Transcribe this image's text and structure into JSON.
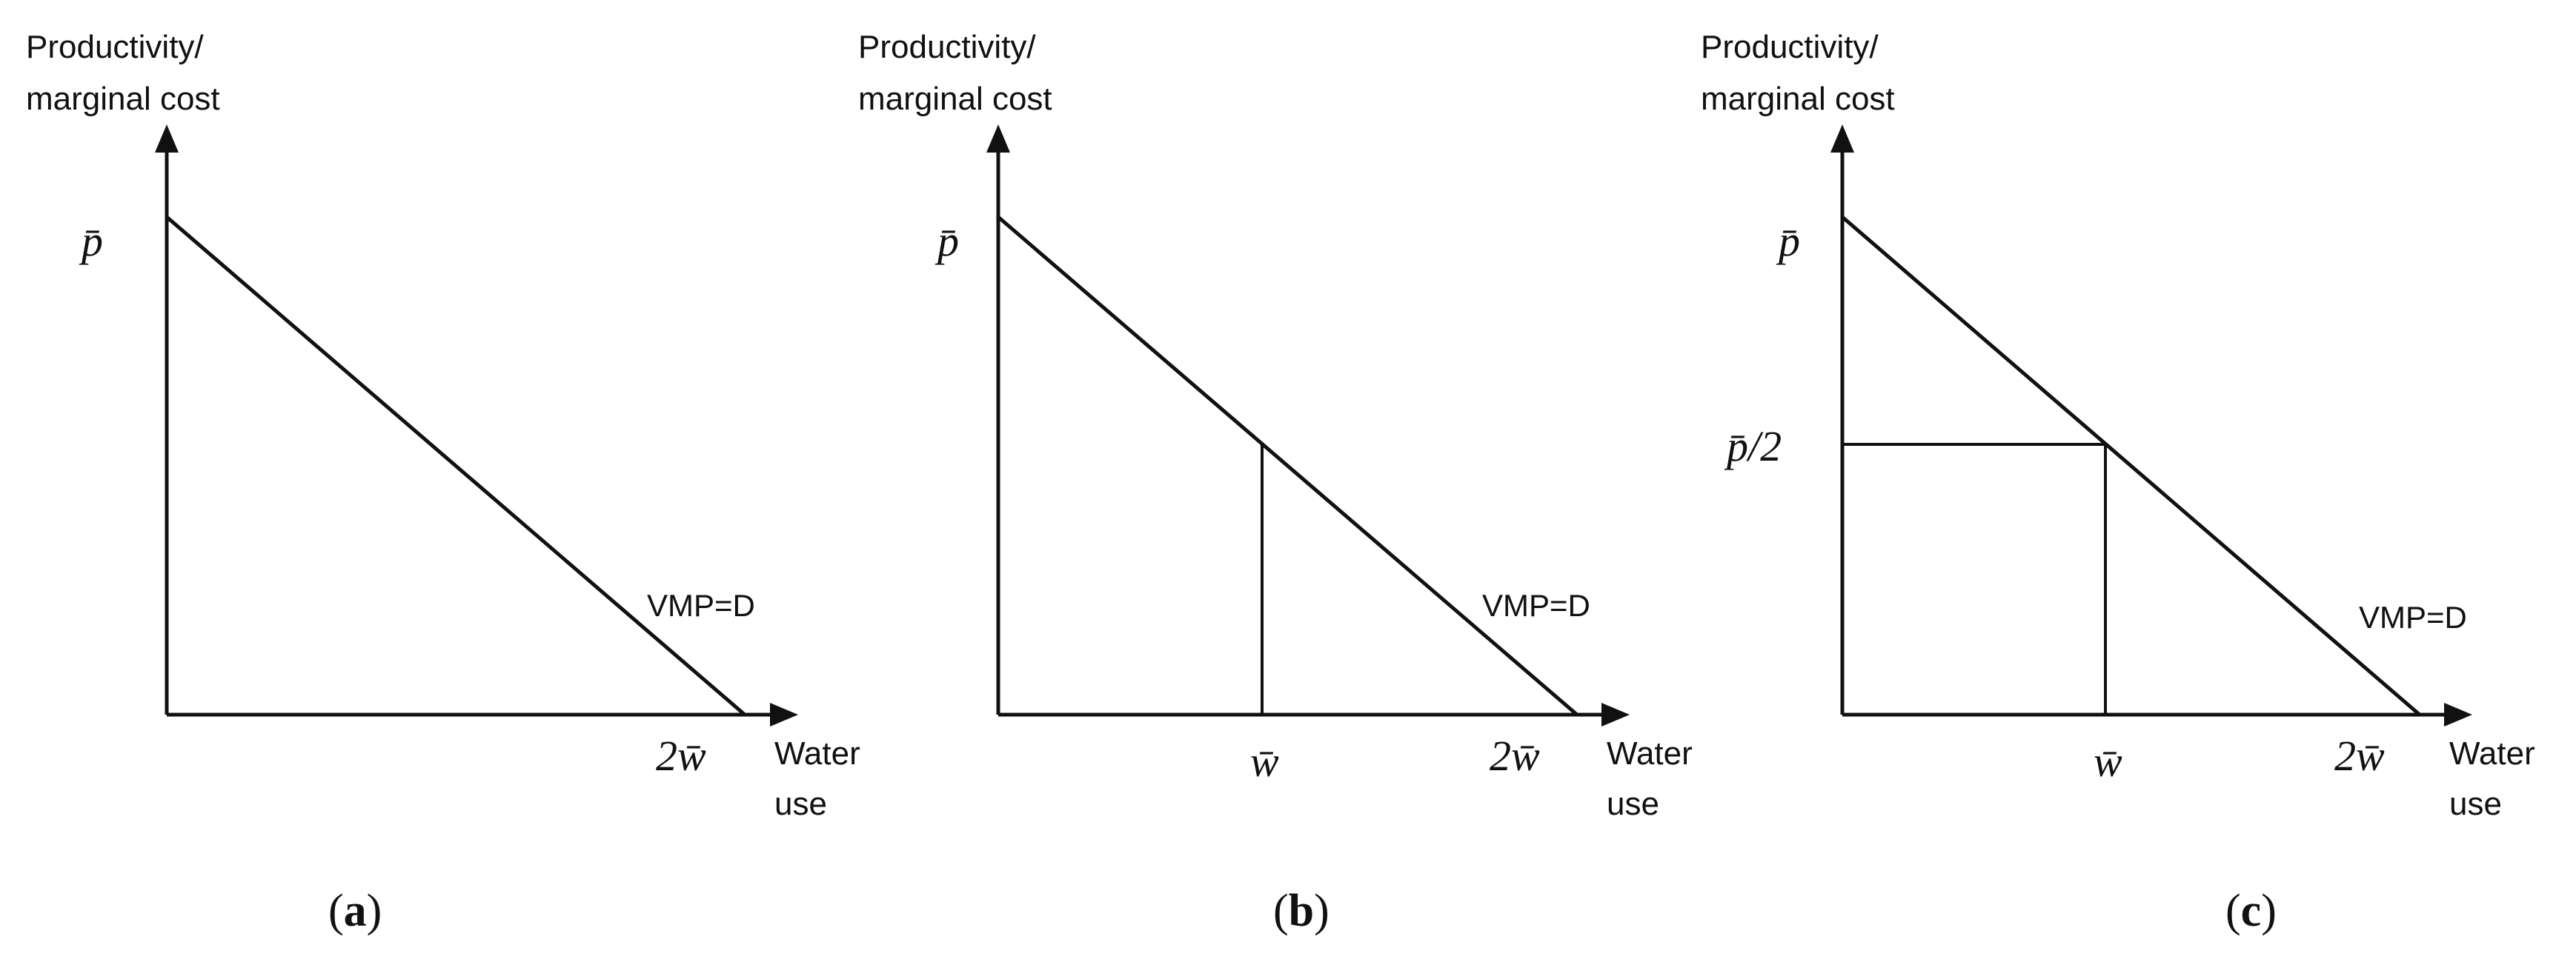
{
  "panels": [
    {
      "id": "a",
      "y_axis_title_line1": "Productivity/",
      "y_axis_title_line2": "marginal cost",
      "x_axis_title_line1": "Water",
      "x_axis_title_line2": "use",
      "y_intercept_label": "p̄",
      "x_intercept_label": "2w̄",
      "curve_label": "VMP=D",
      "caption_open": "(",
      "caption_letter": "a",
      "caption_close": ")"
    },
    {
      "id": "b",
      "y_axis_title_line1": "Productivity/",
      "y_axis_title_line2": "marginal cost",
      "x_axis_title_line1": "Water",
      "x_axis_title_line2": "use",
      "y_intercept_label": "p̄",
      "x_intercept_label": "2w̄",
      "x_mid_label": "w̄",
      "curve_label": "VMP=D",
      "caption_open": "(",
      "caption_letter": "b",
      "caption_close": ")"
    },
    {
      "id": "c",
      "y_axis_title_line1": "Productivity/",
      "y_axis_title_line2": "marginal cost",
      "x_axis_title_line1": "Water",
      "x_axis_title_line2": "use",
      "y_intercept_label": "p̄",
      "y_mid_label": "p̄/2",
      "x_intercept_label": "2w̄",
      "x_mid_label": "w̄",
      "curve_label": "VMP=D",
      "caption_open": "(",
      "caption_letter": "c",
      "caption_close": ")"
    }
  ]
}
